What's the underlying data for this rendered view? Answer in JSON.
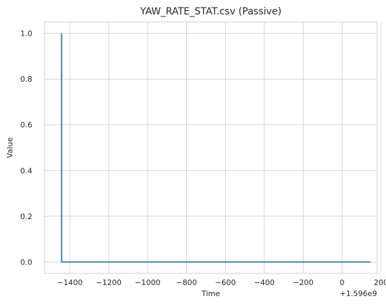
{
  "chart_data": {
    "type": "line",
    "title": "YAW_RATE_STAT.csv (Passive)",
    "xlabel": "Time",
    "ylabel": "Value",
    "x_offset_label": "+1.596e9",
    "xlim": [
      -1530,
      180
    ],
    "ylim": [
      -0.05,
      1.05
    ],
    "x_ticks": [
      -1400,
      -1200,
      -1000,
      -800,
      -600,
      -400,
      -200,
      0,
      200
    ],
    "x_tick_labels": [
      "−1400",
      "−1200",
      "−1000",
      "−800",
      "−600",
      "−400",
      "−200",
      "0",
      "200"
    ],
    "y_ticks": [
      0.0,
      0.2,
      0.4,
      0.6,
      0.8,
      1.0
    ],
    "y_tick_labels": [
      "0.0",
      "0.2",
      "0.4",
      "0.6",
      "0.8",
      "1.0"
    ],
    "grid": true,
    "series": [
      {
        "color": "#1f77b4",
        "x": [
          -1443,
          -1443,
          -1443,
          146
        ],
        "y": [
          1.0,
          0.0,
          0.0,
          0.0
        ]
      }
    ]
  }
}
